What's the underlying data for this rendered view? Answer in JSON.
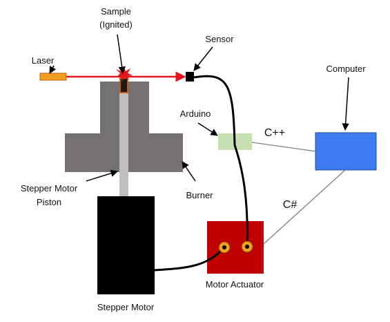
{
  "labels": {
    "sample_line1": "Sample",
    "sample_line2": "(Ignited)",
    "sensor": "Sensor",
    "laser": "Laser",
    "computer": "Computer",
    "arduino": "Arduino",
    "cpp": "C++",
    "csharp": "C#",
    "stepper_piston_line1": "Stepper Motor",
    "stepper_piston_line2": "Piston",
    "burner": "Burner",
    "motor_actuator": "Motor Actuator",
    "stepper_motor": "Stepper Motor"
  },
  "colors": {
    "laser_beam": "#e8141c",
    "laser_body": "#f0a020",
    "burner": "#767171",
    "piston": "#bfbfbf",
    "stepper_motor": "#000000",
    "arduino": "#c6e0b4",
    "computer": "#3c7cf0",
    "motor_actuator": "#c00000",
    "actuator_port": "#f0a020",
    "cable": "#000000",
    "link_line": "#7f7f7f"
  }
}
